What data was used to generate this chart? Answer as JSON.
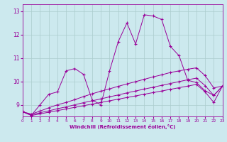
{
  "xlabel": "Windchill (Refroidissement éolien,°C)",
  "background_color": "#cce9ee",
  "line_color": "#990099",
  "grid_color": "#aacccc",
  "xlim": [
    0,
    23
  ],
  "ylim": [
    8.5,
    13.3
  ],
  "yticks": [
    9,
    10,
    11,
    12,
    13
  ],
  "xticks": [
    0,
    1,
    2,
    3,
    4,
    5,
    6,
    7,
    8,
    9,
    10,
    11,
    12,
    13,
    14,
    15,
    16,
    17,
    18,
    19,
    20,
    21,
    22,
    23
  ],
  "series1_y": [
    8.7,
    8.55,
    9.0,
    9.45,
    9.55,
    10.45,
    10.55,
    10.3,
    9.2,
    9.0,
    10.45,
    11.7,
    12.5,
    11.6,
    12.85,
    12.8,
    12.65,
    11.5,
    11.1,
    10.05,
    9.95,
    9.6,
    9.4,
    9.8
  ],
  "series2_y": [
    8.7,
    8.6,
    8.73,
    8.87,
    9.0,
    9.1,
    9.22,
    9.35,
    9.47,
    9.58,
    9.68,
    9.79,
    9.89,
    9.99,
    10.09,
    10.19,
    10.28,
    10.38,
    10.45,
    10.52,
    10.58,
    10.25,
    9.72,
    9.8
  ],
  "series3_y": [
    8.7,
    8.57,
    8.66,
    8.74,
    8.83,
    8.91,
    9.0,
    9.09,
    9.17,
    9.25,
    9.34,
    9.42,
    9.51,
    9.59,
    9.67,
    9.75,
    9.83,
    9.91,
    9.99,
    10.07,
    10.14,
    9.82,
    9.4,
    9.8
  ],
  "series4_y": [
    8.7,
    8.54,
    8.61,
    8.68,
    8.75,
    8.82,
    8.89,
    8.96,
    9.03,
    9.1,
    9.17,
    9.24,
    9.31,
    9.38,
    9.45,
    9.52,
    9.59,
    9.66,
    9.73,
    9.8,
    9.87,
    9.55,
    9.1,
    9.8
  ]
}
